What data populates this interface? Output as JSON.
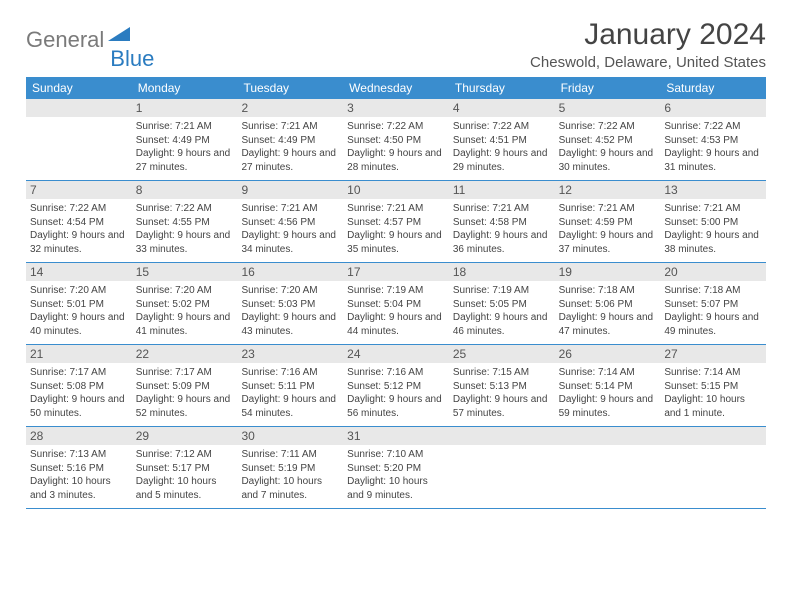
{
  "logo": {
    "text_general": "General",
    "text_blue": "Blue",
    "icon_color": "#2b7cc0"
  },
  "title": "January 2024",
  "location": "Cheswold, Delaware, United States",
  "colors": {
    "header_bg": "#3a8dce",
    "header_text": "#ffffff",
    "day_header_bg": "#e8e8e8",
    "text": "#444444",
    "border": "#3a8dce"
  },
  "typography": {
    "title_fontsize": 30,
    "location_fontsize": 15,
    "weekday_fontsize": 12,
    "daynum_fontsize": 12,
    "body_fontsize": 10
  },
  "weekdays": [
    "Sunday",
    "Monday",
    "Tuesday",
    "Wednesday",
    "Thursday",
    "Friday",
    "Saturday"
  ],
  "weeks": [
    [
      null,
      {
        "n": "1",
        "sr": "7:21 AM",
        "ss": "4:49 PM",
        "dl": "9 hours and 27 minutes."
      },
      {
        "n": "2",
        "sr": "7:21 AM",
        "ss": "4:49 PM",
        "dl": "9 hours and 27 minutes."
      },
      {
        "n": "3",
        "sr": "7:22 AM",
        "ss": "4:50 PM",
        "dl": "9 hours and 28 minutes."
      },
      {
        "n": "4",
        "sr": "7:22 AM",
        "ss": "4:51 PM",
        "dl": "9 hours and 29 minutes."
      },
      {
        "n": "5",
        "sr": "7:22 AM",
        "ss": "4:52 PM",
        "dl": "9 hours and 30 minutes."
      },
      {
        "n": "6",
        "sr": "7:22 AM",
        "ss": "4:53 PM",
        "dl": "9 hours and 31 minutes."
      }
    ],
    [
      {
        "n": "7",
        "sr": "7:22 AM",
        "ss": "4:54 PM",
        "dl": "9 hours and 32 minutes."
      },
      {
        "n": "8",
        "sr": "7:22 AM",
        "ss": "4:55 PM",
        "dl": "9 hours and 33 minutes."
      },
      {
        "n": "9",
        "sr": "7:21 AM",
        "ss": "4:56 PM",
        "dl": "9 hours and 34 minutes."
      },
      {
        "n": "10",
        "sr": "7:21 AM",
        "ss": "4:57 PM",
        "dl": "9 hours and 35 minutes."
      },
      {
        "n": "11",
        "sr": "7:21 AM",
        "ss": "4:58 PM",
        "dl": "9 hours and 36 minutes."
      },
      {
        "n": "12",
        "sr": "7:21 AM",
        "ss": "4:59 PM",
        "dl": "9 hours and 37 minutes."
      },
      {
        "n": "13",
        "sr": "7:21 AM",
        "ss": "5:00 PM",
        "dl": "9 hours and 38 minutes."
      }
    ],
    [
      {
        "n": "14",
        "sr": "7:20 AM",
        "ss": "5:01 PM",
        "dl": "9 hours and 40 minutes."
      },
      {
        "n": "15",
        "sr": "7:20 AM",
        "ss": "5:02 PM",
        "dl": "9 hours and 41 minutes."
      },
      {
        "n": "16",
        "sr": "7:20 AM",
        "ss": "5:03 PM",
        "dl": "9 hours and 43 minutes."
      },
      {
        "n": "17",
        "sr": "7:19 AM",
        "ss": "5:04 PM",
        "dl": "9 hours and 44 minutes."
      },
      {
        "n": "18",
        "sr": "7:19 AM",
        "ss": "5:05 PM",
        "dl": "9 hours and 46 minutes."
      },
      {
        "n": "19",
        "sr": "7:18 AM",
        "ss": "5:06 PM",
        "dl": "9 hours and 47 minutes."
      },
      {
        "n": "20",
        "sr": "7:18 AM",
        "ss": "5:07 PM",
        "dl": "9 hours and 49 minutes."
      }
    ],
    [
      {
        "n": "21",
        "sr": "7:17 AM",
        "ss": "5:08 PM",
        "dl": "9 hours and 50 minutes."
      },
      {
        "n": "22",
        "sr": "7:17 AM",
        "ss": "5:09 PM",
        "dl": "9 hours and 52 minutes."
      },
      {
        "n": "23",
        "sr": "7:16 AM",
        "ss": "5:11 PM",
        "dl": "9 hours and 54 minutes."
      },
      {
        "n": "24",
        "sr": "7:16 AM",
        "ss": "5:12 PM",
        "dl": "9 hours and 56 minutes."
      },
      {
        "n": "25",
        "sr": "7:15 AM",
        "ss": "5:13 PM",
        "dl": "9 hours and 57 minutes."
      },
      {
        "n": "26",
        "sr": "7:14 AM",
        "ss": "5:14 PM",
        "dl": "9 hours and 59 minutes."
      },
      {
        "n": "27",
        "sr": "7:14 AM",
        "ss": "5:15 PM",
        "dl": "10 hours and 1 minute."
      }
    ],
    [
      {
        "n": "28",
        "sr": "7:13 AM",
        "ss": "5:16 PM",
        "dl": "10 hours and 3 minutes."
      },
      {
        "n": "29",
        "sr": "7:12 AM",
        "ss": "5:17 PM",
        "dl": "10 hours and 5 minutes."
      },
      {
        "n": "30",
        "sr": "7:11 AM",
        "ss": "5:19 PM",
        "dl": "10 hours and 7 minutes."
      },
      {
        "n": "31",
        "sr": "7:10 AM",
        "ss": "5:20 PM",
        "dl": "10 hours and 9 minutes."
      },
      null,
      null,
      null
    ]
  ],
  "labels": {
    "sunrise": "Sunrise:",
    "sunset": "Sunset:",
    "daylight": "Daylight:"
  }
}
